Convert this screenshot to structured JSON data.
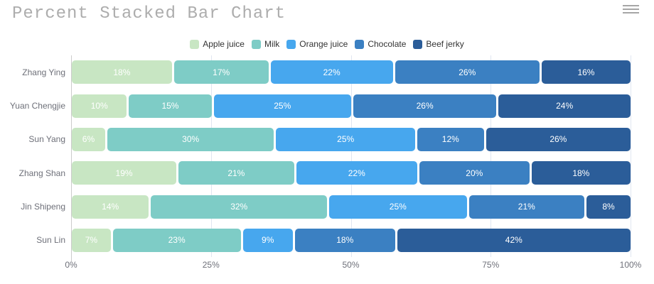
{
  "title": "Percent Stacked Bar Chart",
  "toolbox": {
    "menu_icon": "hamburger-menu-icon"
  },
  "colors": {
    "background": "#ffffff",
    "title_text": "#adadad",
    "legend_text": "#333333",
    "axis_text": "#6e7079",
    "axis_line": "#cccccc",
    "grid_line": "#e0e6f1",
    "bar_label_text": "#ffffff"
  },
  "chart_data": {
    "type": "bar",
    "orientation": "horizontal",
    "stacked": true,
    "percent": true,
    "title": "Percent Stacked Bar Chart",
    "legend_position": "top-center",
    "grid": true,
    "categories": [
      "Zhang Ying",
      "Yuan Chengjie",
      "Sun Yang",
      "Zhang Shan",
      "Jin Shipeng",
      "Sun Lin"
    ],
    "series": [
      {
        "name": "Apple juice",
        "color": "#c8e6c3",
        "values": [
          18,
          10,
          6,
          19,
          14,
          7
        ]
      },
      {
        "name": "Milk",
        "color": "#7eccc6",
        "values": [
          17,
          15,
          30,
          21,
          32,
          23
        ]
      },
      {
        "name": "Orange juice",
        "color": "#47a7ee",
        "values": [
          22,
          25,
          25,
          22,
          25,
          9
        ]
      },
      {
        "name": "Chocolate",
        "color": "#3b80c2",
        "values": [
          26,
          26,
          12,
          20,
          21,
          18
        ]
      },
      {
        "name": "Beef jerky",
        "color": "#2b5d99",
        "values": [
          16,
          24,
          26,
          18,
          8,
          42
        ]
      }
    ],
    "value_suffix": "%",
    "x_axis": {
      "ticks": [
        "0%",
        "25%",
        "50%",
        "75%",
        "100%"
      ],
      "range": [
        0,
        100
      ]
    }
  }
}
